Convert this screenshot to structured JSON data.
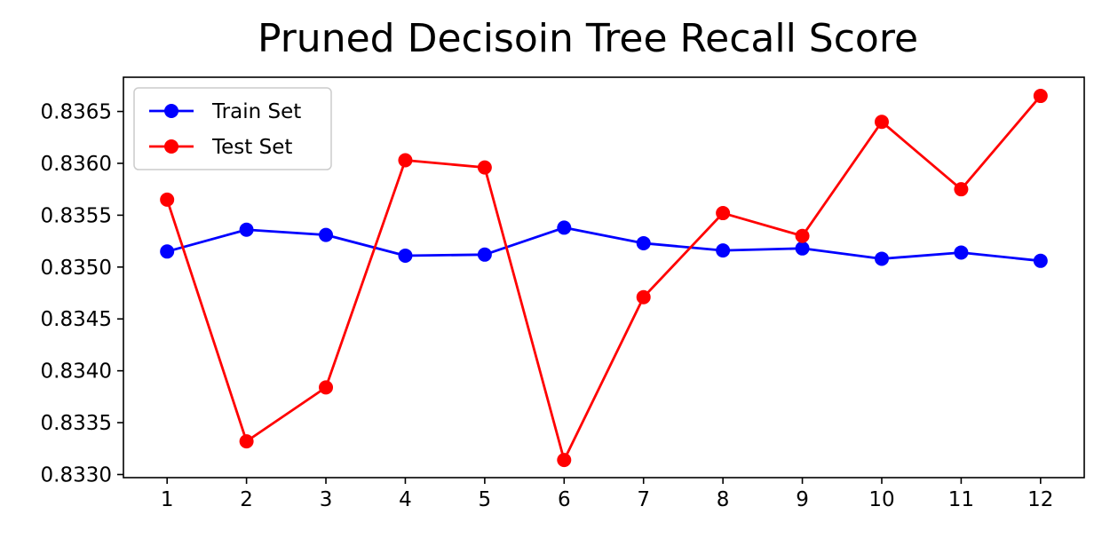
{
  "chart_data": {
    "type": "line",
    "title": "Pruned Decisoin Tree Recall Score",
    "xlabel": "",
    "ylabel": "",
    "x": [
      1,
      2,
      3,
      4,
      5,
      6,
      7,
      8,
      9,
      10,
      11,
      12
    ],
    "xticks": [
      "1",
      "2",
      "3",
      "4",
      "5",
      "6",
      "7",
      "8",
      "9",
      "10",
      "11",
      "12"
    ],
    "yticks": [
      "0.8330",
      "0.8335",
      "0.8340",
      "0.8345",
      "0.8350",
      "0.8355",
      "0.8360",
      "0.8365"
    ],
    "ylim": [
      0.83297,
      0.83683
    ],
    "xlim": [
      0.45,
      12.55
    ],
    "grid": false,
    "legend_position": "top-left",
    "series": [
      {
        "name": "Train Set",
        "color": "#0000ff",
        "marker": "circle",
        "values": [
          0.83515,
          0.83536,
          0.83531,
          0.83511,
          0.83512,
          0.83538,
          0.83523,
          0.83516,
          0.83518,
          0.83508,
          0.83514,
          0.83506
        ]
      },
      {
        "name": "Test Set",
        "color": "#ff0000",
        "marker": "circle",
        "values": [
          0.83565,
          0.83332,
          0.83384,
          0.83603,
          0.83596,
          0.83314,
          0.83471,
          0.83552,
          0.8353,
          0.8364,
          0.83575,
          0.83665
        ]
      }
    ]
  }
}
